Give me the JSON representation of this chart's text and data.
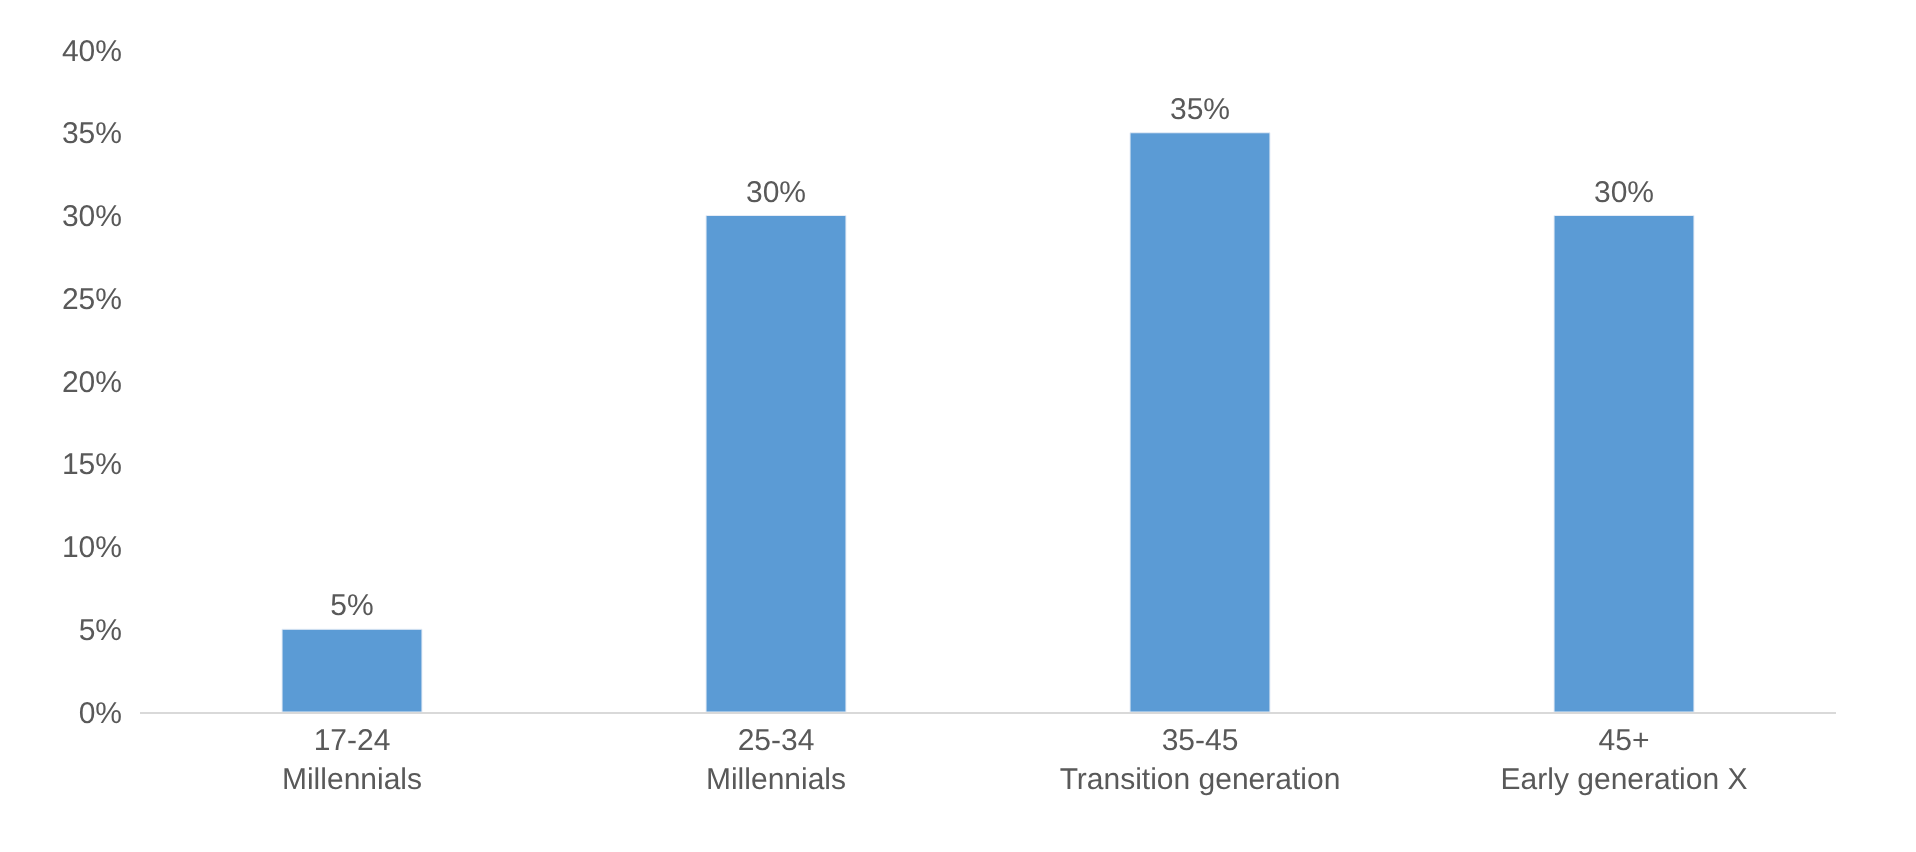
{
  "chart_data": {
    "type": "bar",
    "categories": [
      "17-24\nMillennials",
      "25-34\nMillennials",
      "35-45\nTransition generation",
      "45+\nEarly generation X"
    ],
    "values": [
      5,
      30,
      35,
      30
    ],
    "color": "#5b9bd5",
    "value_labels": [
      "5%",
      "30%",
      "35%",
      "30%"
    ],
    "ylim": [
      0,
      40
    ],
    "yticks": [
      {
        "value": 0,
        "label": "0%"
      },
      {
        "value": 5,
        "label": "5%"
      },
      {
        "value": 10,
        "label": "10%"
      },
      {
        "value": 15,
        "label": "15%"
      },
      {
        "value": 20,
        "label": "20%"
      },
      {
        "value": 25,
        "label": "25%"
      },
      {
        "value": 30,
        "label": "30%"
      },
      {
        "value": 35,
        "label": "35%"
      },
      {
        "value": 40,
        "label": "40%"
      }
    ],
    "grid": false
  }
}
